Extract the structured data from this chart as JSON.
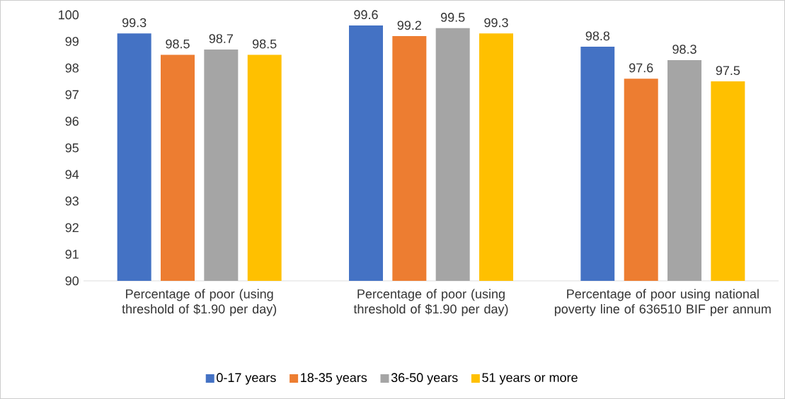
{
  "chart_data": {
    "type": "bar",
    "categories": [
      "Percentage of poor (using threshold of $1.90 per day)",
      "Percentage of poor (using threshold of $1.90 per day)",
      "Percentage of poor using national poverty line of 636510 BIF per annum"
    ],
    "series": [
      {
        "name": "0-17 years",
        "color": "#4472c4",
        "values": [
          99.3,
          99.6,
          98.8
        ]
      },
      {
        "name": "18-35 years",
        "color": "#ed7d31",
        "values": [
          98.5,
          99.2,
          97.6
        ]
      },
      {
        "name": "36-50 years",
        "color": "#a5a5a5",
        "values": [
          98.7,
          99.5,
          98.3
        ]
      },
      {
        "name": "51 years or more",
        "color": "#ffc000",
        "values": [
          98.5,
          99.3,
          97.5
        ]
      }
    ],
    "ylim": [
      90,
      100
    ],
    "yticks": [
      90,
      91,
      92,
      93,
      94,
      95,
      96,
      97,
      98,
      99,
      100
    ],
    "data_labels": true,
    "legend": "bottom"
  }
}
